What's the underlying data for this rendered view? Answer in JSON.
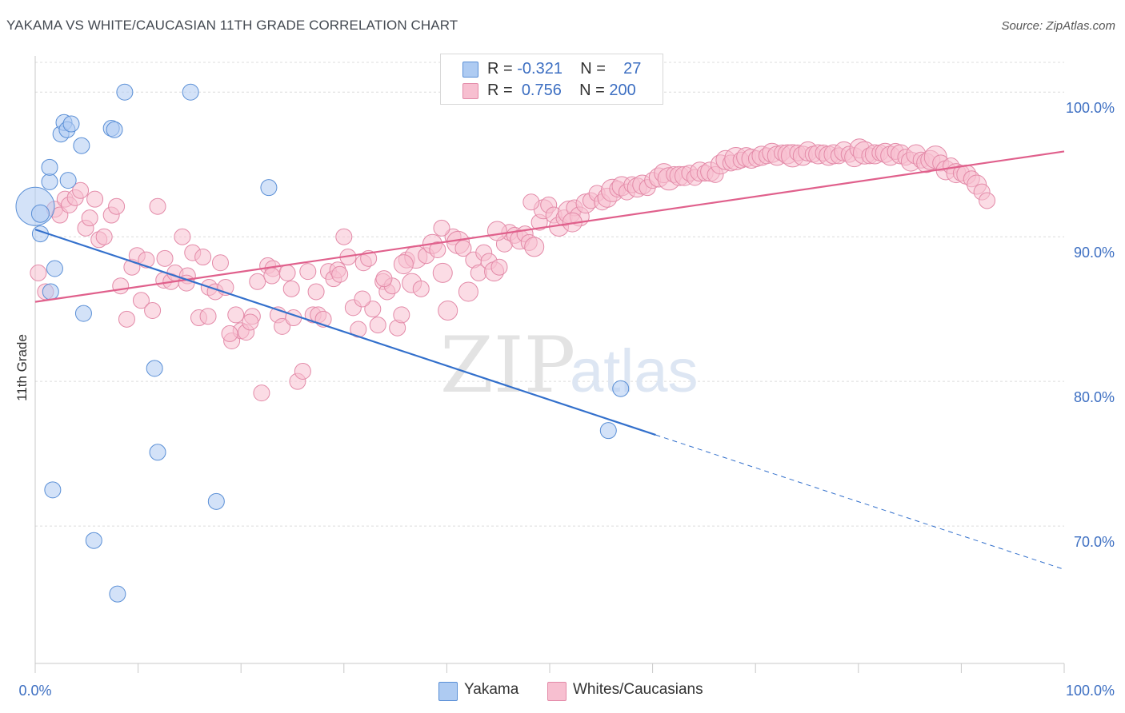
{
  "title": "YAKAMA VS WHITE/CAUCASIAN 11TH GRADE CORRELATION CHART",
  "source": "Source: ZipAtlas.com",
  "watermark": {
    "zip": "ZIP",
    "atlas": "atlas"
  },
  "colors": {
    "yakama_fill": "#aecbf2",
    "yakama_stroke": "#5a8fd6",
    "yakama_line": "#3370cc",
    "white_fill": "#f7bfd0",
    "white_stroke": "#e38aa8",
    "white_line": "#e0608c",
    "axis_label": "#3d6fc2",
    "grid": "#dcdcdc"
  },
  "legend": {
    "rows": [
      {
        "r_label": "R =",
        "r_value": "-0.321",
        "n_label": "N =",
        "n_value": "27"
      },
      {
        "r_label": "R =",
        "r_value": "0.756",
        "n_label": "N =",
        "n_value": "200"
      }
    ]
  },
  "bottom_legend": [
    "Yakama",
    "Whites/Caucasians"
  ],
  "chart_data": {
    "type": "scatter",
    "title": "YAKAMA VS WHITE/CAUCASIAN 11TH GRADE CORRELATION CHART",
    "xlabel": "",
    "ylabel": "11th Grade",
    "xlim": [
      0,
      100
    ],
    "ylim": [
      60.5,
      102.5
    ],
    "x_tick_labels": [
      "0.0%",
      "100.0%"
    ],
    "y_ticks": [
      70,
      80,
      90,
      100
    ],
    "y_tick_labels": [
      "70.0%",
      "80.0%",
      "90.0%",
      "100.0%"
    ],
    "grid": true,
    "legend_position": "top-center",
    "series": [
      {
        "name": "Yakama",
        "R": -0.321,
        "N": 27,
        "trend": {
          "x0": 0,
          "y0": 90.5,
          "x1": 60.3,
          "y1": 76.3,
          "dashed_to_x": 100,
          "dashed_to_y": 67.0
        },
        "points": [
          [
            0,
            92.1,
            24
          ],
          [
            0.5,
            91.6,
            11
          ],
          [
            0.5,
            90.2,
            10
          ],
          [
            1.5,
            86.2,
            10
          ],
          [
            1.7,
            72.5,
            10
          ],
          [
            1.9,
            87.8,
            10
          ],
          [
            1.4,
            93.8,
            10
          ],
          [
            1.4,
            94.8,
            10
          ],
          [
            2.5,
            97.1,
            10
          ],
          [
            2.8,
            97.9,
            10
          ],
          [
            3.1,
            97.4,
            10
          ],
          [
            3.5,
            97.8,
            10
          ],
          [
            3.2,
            93.9,
            10
          ],
          [
            4.5,
            96.3,
            10
          ],
          [
            4.7,
            84.7,
            10
          ],
          [
            5.7,
            69.0,
            10
          ],
          [
            7.4,
            97.5,
            10
          ],
          [
            7.7,
            97.4,
            10
          ],
          [
            8.0,
            65.3,
            10
          ],
          [
            8.7,
            100.0,
            10
          ],
          [
            11.6,
            80.9,
            10
          ],
          [
            11.9,
            75.1,
            10
          ],
          [
            15.1,
            100.0,
            10
          ],
          [
            17.6,
            71.7,
            10
          ],
          [
            22.7,
            93.4,
            10
          ],
          [
            55.7,
            76.6,
            10
          ],
          [
            56.9,
            79.5,
            10
          ]
        ]
      },
      {
        "name": "Whites/Caucasians",
        "R": 0.756,
        "N": 200,
        "trend": {
          "x0": 0,
          "y0": 85.5,
          "x1": 100,
          "y1": 95.9
        },
        "points": [
          [
            0.3,
            87.5,
            10
          ],
          [
            1.0,
            86.2,
            10
          ],
          [
            1.9,
            91.9,
            10
          ],
          [
            2.4,
            91.5,
            10
          ],
          [
            2.9,
            92.6,
            10
          ],
          [
            3.3,
            92.2,
            10
          ],
          [
            3.9,
            92.7,
            10
          ],
          [
            4.4,
            93.2,
            10
          ],
          [
            4.9,
            90.6,
            10
          ],
          [
            5.3,
            91.3,
            10
          ],
          [
            5.8,
            92.6,
            10
          ],
          [
            6.2,
            89.8,
            10
          ],
          [
            6.7,
            90.0,
            10
          ],
          [
            7.4,
            91.5,
            10
          ],
          [
            7.9,
            92.1,
            10
          ],
          [
            8.3,
            86.6,
            10
          ],
          [
            8.9,
            84.3,
            10
          ],
          [
            9.4,
            87.9,
            10
          ],
          [
            9.9,
            88.7,
            10
          ],
          [
            10.3,
            85.6,
            10
          ],
          [
            10.8,
            88.4,
            10
          ],
          [
            11.4,
            84.9,
            10
          ],
          [
            11.9,
            92.1,
            10
          ],
          [
            12.5,
            87.0,
            10
          ],
          [
            13.2,
            86.9,
            10
          ],
          [
            13.6,
            87.5,
            10
          ],
          [
            14.3,
            90.0,
            10
          ],
          [
            14.8,
            87.3,
            10
          ],
          [
            15.3,
            88.9,
            10
          ],
          [
            15.9,
            84.4,
            10
          ],
          [
            16.3,
            88.6,
            10
          ],
          [
            16.9,
            86.5,
            10
          ],
          [
            17.5,
            86.2,
            10
          ],
          [
            18.0,
            88.2,
            10
          ],
          [
            18.5,
            86.5,
            10
          ],
          [
            19.1,
            82.8,
            10
          ],
          [
            19.5,
            84.6,
            10
          ],
          [
            20.0,
            83.5,
            10
          ],
          [
            20.5,
            83.4,
            10
          ],
          [
            21.1,
            84.5,
            10
          ],
          [
            21.6,
            86.9,
            10
          ],
          [
            22.0,
            79.2,
            10
          ],
          [
            22.6,
            88.0,
            10
          ],
          [
            23.1,
            87.8,
            10
          ],
          [
            23.6,
            84.6,
            10
          ],
          [
            24.0,
            83.8,
            10
          ],
          [
            24.5,
            87.5,
            10
          ],
          [
            24.9,
            86.4,
            10
          ],
          [
            25.5,
            80.0,
            10
          ],
          [
            26.0,
            80.7,
            10
          ],
          [
            26.5,
            87.6,
            10
          ],
          [
            27.0,
            84.6,
            10
          ],
          [
            27.5,
            84.6,
            10
          ],
          [
            28.0,
            84.3,
            10
          ],
          [
            28.5,
            87.6,
            10
          ],
          [
            29.0,
            87.1,
            10
          ],
          [
            29.4,
            87.7,
            10
          ],
          [
            30.0,
            90.0,
            10
          ],
          [
            30.4,
            88.6,
            10
          ],
          [
            30.9,
            85.1,
            10
          ],
          [
            31.4,
            83.6,
            10
          ],
          [
            31.9,
            88.2,
            10
          ],
          [
            32.4,
            88.5,
            10
          ],
          [
            32.8,
            85.0,
            10
          ],
          [
            33.3,
            83.9,
            10
          ],
          [
            33.8,
            86.9,
            10
          ],
          [
            34.2,
            86.2,
            10
          ],
          [
            34.7,
            86.6,
            10
          ],
          [
            35.2,
            83.7,
            10
          ],
          [
            35.6,
            84.6,
            10
          ],
          [
            36.1,
            88.4,
            10
          ],
          [
            36.6,
            86.8,
            12
          ],
          [
            37.0,
            88.6,
            14
          ],
          [
            37.5,
            86.4,
            10
          ],
          [
            38.0,
            88.7,
            10
          ],
          [
            38.6,
            89.5,
            12
          ],
          [
            39.1,
            89.1,
            10
          ],
          [
            39.6,
            87.5,
            12
          ],
          [
            40.1,
            84.9,
            12
          ],
          [
            40.6,
            90.0,
            10
          ],
          [
            41.1,
            89.6,
            14
          ],
          [
            41.6,
            89.2,
            10
          ],
          [
            42.1,
            86.2,
            12
          ],
          [
            42.6,
            88.4,
            10
          ],
          [
            43.1,
            87.5,
            10
          ],
          [
            43.6,
            88.9,
            10
          ],
          [
            44.1,
            88.3,
            10
          ],
          [
            44.6,
            87.6,
            12
          ],
          [
            45.1,
            87.9,
            10
          ],
          [
            45.6,
            89.5,
            10
          ],
          [
            46.1,
            90.3,
            10
          ],
          [
            46.6,
            90.1,
            10
          ],
          [
            47.1,
            89.8,
            12
          ],
          [
            47.6,
            90.2,
            10
          ],
          [
            48.0,
            89.6,
            10
          ],
          [
            48.5,
            89.3,
            12
          ],
          [
            49.0,
            91.0,
            10
          ],
          [
            49.4,
            91.9,
            12
          ],
          [
            49.9,
            92.2,
            10
          ],
          [
            50.4,
            91.5,
            10
          ],
          [
            50.9,
            90.7,
            12
          ],
          [
            51.4,
            91.3,
            10
          ],
          [
            51.9,
            91.7,
            14
          ],
          [
            52.4,
            92.0,
            10
          ],
          [
            52.9,
            91.4,
            12
          ],
          [
            53.5,
            92.3,
            12
          ],
          [
            54.0,
            92.5,
            10
          ],
          [
            54.6,
            93.0,
            10
          ],
          [
            55.1,
            92.4,
            10
          ],
          [
            55.6,
            92.7,
            12
          ],
          [
            56.1,
            93.2,
            14
          ],
          [
            56.6,
            93.3,
            10
          ],
          [
            57.0,
            93.5,
            12
          ],
          [
            57.5,
            93.1,
            10
          ],
          [
            58.0,
            93.6,
            10
          ],
          [
            58.5,
            93.4,
            12
          ],
          [
            59.0,
            93.6,
            12
          ],
          [
            59.5,
            93.4,
            10
          ],
          [
            60.0,
            93.9,
            10
          ],
          [
            60.6,
            94.1,
            12
          ],
          [
            61.1,
            94.4,
            12
          ],
          [
            61.6,
            94.0,
            14
          ],
          [
            62.1,
            94.3,
            10
          ],
          [
            62.6,
            94.2,
            12
          ],
          [
            63.1,
            94.2,
            12
          ],
          [
            63.6,
            94.4,
            10
          ],
          [
            64.1,
            94.1,
            10
          ],
          [
            64.6,
            94.5,
            12
          ],
          [
            65.1,
            94.4,
            10
          ],
          [
            65.6,
            94.5,
            12
          ],
          [
            66.1,
            94.3,
            10
          ],
          [
            66.6,
            95.0,
            12
          ],
          [
            67.1,
            95.3,
            12
          ],
          [
            67.6,
            95.1,
            10
          ],
          [
            68.1,
            95.4,
            14
          ],
          [
            68.6,
            95.3,
            10
          ],
          [
            69.1,
            95.5,
            12
          ],
          [
            69.6,
            95.4,
            12
          ],
          [
            70.1,
            95.4,
            10
          ],
          [
            70.6,
            95.6,
            12
          ],
          [
            71.1,
            95.6,
            10
          ],
          [
            71.6,
            95.8,
            12
          ],
          [
            72.1,
            95.6,
            12
          ],
          [
            72.6,
            95.8,
            10
          ],
          [
            73.1,
            95.7,
            12
          ],
          [
            73.6,
            95.6,
            14
          ],
          [
            74.1,
            95.8,
            10
          ],
          [
            74.6,
            95.6,
            12
          ],
          [
            75.1,
            95.9,
            12
          ],
          [
            75.6,
            95.7,
            10
          ],
          [
            76.1,
            95.7,
            12
          ],
          [
            76.6,
            95.8,
            10
          ],
          [
            77.1,
            95.6,
            12
          ],
          [
            77.6,
            95.7,
            12
          ],
          [
            78.1,
            95.6,
            10
          ],
          [
            78.6,
            95.9,
            12
          ],
          [
            79.1,
            95.7,
            10
          ],
          [
            79.6,
            95.5,
            12
          ],
          [
            80.1,
            96.1,
            12
          ],
          [
            80.6,
            95.8,
            14
          ],
          [
            81.1,
            95.6,
            10
          ],
          [
            81.6,
            95.7,
            12
          ],
          [
            82.1,
            95.8,
            10
          ],
          [
            82.6,
            95.8,
            12
          ],
          [
            83.1,
            95.6,
            12
          ],
          [
            83.6,
            95.9,
            10
          ],
          [
            84.1,
            95.7,
            12
          ],
          [
            84.6,
            95.5,
            10
          ],
          [
            85.1,
            95.2,
            12
          ],
          [
            85.6,
            95.7,
            12
          ],
          [
            86.1,
            95.3,
            10
          ],
          [
            86.6,
            95.1,
            12
          ],
          [
            87.0,
            95.3,
            12
          ],
          [
            87.5,
            95.5,
            14
          ],
          [
            88.0,
            95.1,
            10
          ],
          [
            88.5,
            94.6,
            12
          ],
          [
            89.0,
            94.9,
            10
          ],
          [
            89.5,
            94.4,
            12
          ],
          [
            90.0,
            94.4,
            10
          ],
          [
            90.5,
            94.3,
            12
          ],
          [
            91.0,
            94.0,
            10
          ],
          [
            91.5,
            93.6,
            12
          ],
          [
            92.0,
            93.1,
            10
          ],
          [
            92.5,
            92.5,
            10
          ],
          [
            52.2,
            91.0,
            12
          ],
          [
            48.2,
            92.4,
            10
          ],
          [
            44.9,
            90.4,
            12
          ],
          [
            39.5,
            90.6,
            10
          ],
          [
            35.8,
            88.1,
            12
          ],
          [
            33.9,
            87.1,
            10
          ],
          [
            31.8,
            85.7,
            10
          ],
          [
            29.6,
            87.4,
            10
          ],
          [
            27.3,
            86.2,
            10
          ],
          [
            25.1,
            84.4,
            10
          ],
          [
            23.0,
            87.3,
            10
          ],
          [
            20.9,
            84.1,
            10
          ],
          [
            18.9,
            83.3,
            10
          ],
          [
            16.8,
            84.5,
            10
          ],
          [
            14.7,
            86.8,
            10
          ],
          [
            12.6,
            88.5,
            10
          ]
        ]
      }
    ]
  }
}
